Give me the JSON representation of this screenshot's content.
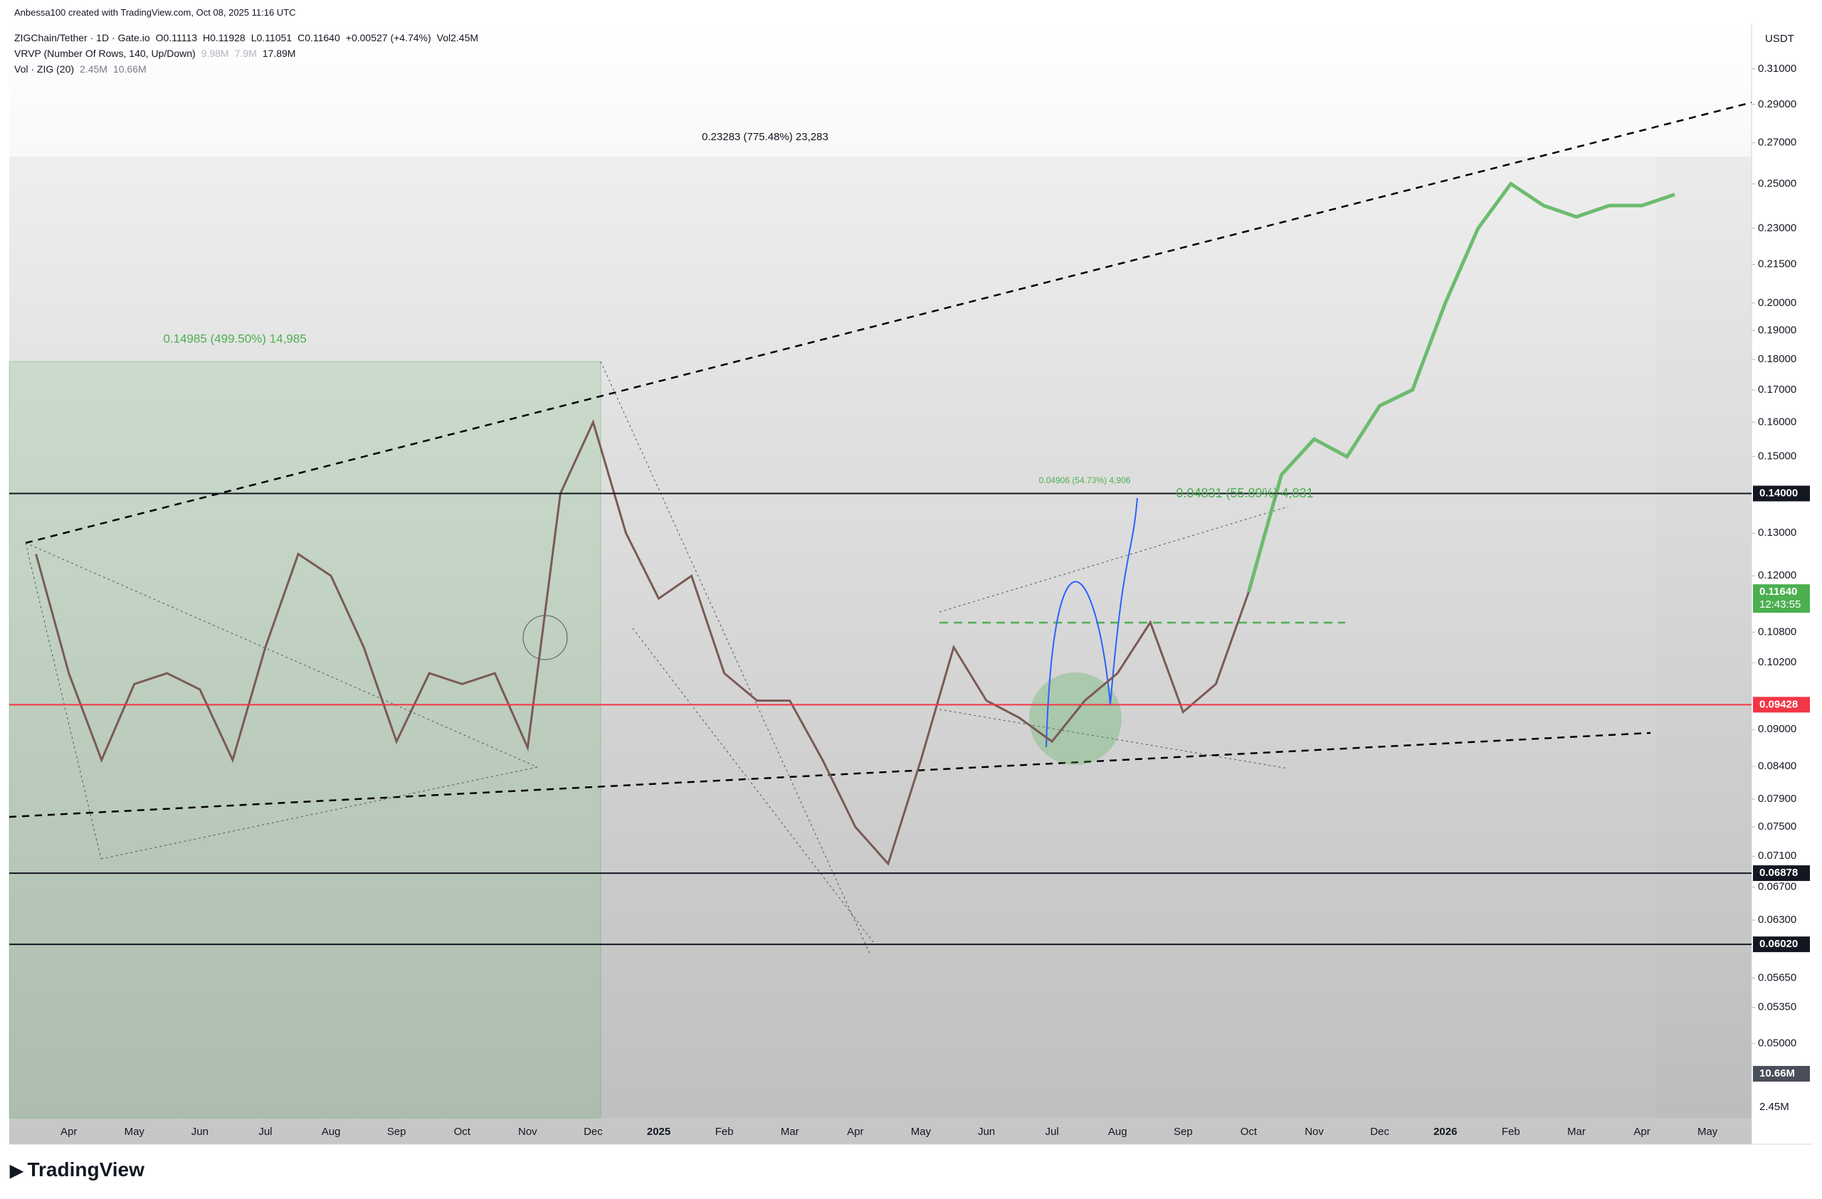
{
  "header": {
    "credit": "Anbessa100 created with TradingView.com, Oct 08, 2025 11:16 UTC",
    "legend_rows": [
      [
        "ZIGChain/Tether · 1D · Gate.io",
        "O0.11113",
        "H0.11928",
        "L0.11051",
        "C0.11640",
        "+0.00527 (+4.74%)",
        "Vol2.45M"
      ],
      [
        "VRVP (Number Of Rows, 140, Up/Down)",
        "9.98M",
        "7.9M",
        "17.89M"
      ],
      [
        "Vol · ZIG (20)",
        "2.45M",
        "10.66M"
      ]
    ]
  },
  "chart_data": {
    "type": "line",
    "log_scale": true,
    "color": "#7a5a55",
    "projection_color": "#6dbb6f",
    "currency": "USDT",
    "categories": [
      null,
      "Apr",
      null,
      "May",
      null,
      "Jun",
      null,
      "Jul",
      null,
      "Aug",
      null,
      "Sep",
      null,
      "Oct",
      null,
      "Nov",
      null,
      "Dec",
      null,
      "2025",
      null,
      "Feb",
      null,
      "Mar",
      null,
      "Apr",
      null,
      "May",
      null,
      "Jun",
      null,
      "Jul",
      null,
      "Aug",
      null,
      "Sep",
      null,
      "Oct",
      null,
      "Nov",
      null,
      "Dec",
      null,
      "2026",
      null,
      "Feb",
      null,
      "Mar",
      null,
      "Apr",
      null,
      "May"
    ],
    "values": [
      0.125,
      0.1,
      0.085,
      0.098,
      0.1,
      0.097,
      0.085,
      0.105,
      0.125,
      0.12,
      0.105,
      0.088,
      0.1,
      0.098,
      0.1,
      0.087,
      0.14,
      0.16,
      0.13,
      0.115,
      0.12,
      0.1,
      0.095,
      0.095,
      0.085,
      0.075,
      0.07,
      0.085,
      0.105,
      0.095,
      0.092,
      0.088,
      0.095,
      0.1,
      0.11,
      0.093,
      0.098,
      0.1164,
      null,
      null,
      null,
      null,
      null,
      null,
      null,
      null,
      null,
      null,
      null,
      null,
      null,
      null
    ],
    "projection": [
      null,
      null,
      null,
      null,
      null,
      null,
      null,
      null,
      null,
      null,
      null,
      null,
      null,
      null,
      null,
      null,
      null,
      null,
      null,
      null,
      null,
      null,
      null,
      null,
      null,
      null,
      null,
      null,
      null,
      null,
      null,
      null,
      null,
      null,
      null,
      null,
      null,
      0.1164,
      0.145,
      0.155,
      0.15,
      0.165,
      0.17,
      0.2,
      0.23,
      0.25,
      0.24,
      0.235,
      0.24,
      0.24,
      0.245,
      null
    ],
    "ylim": [
      0.0435,
      0.3375
    ],
    "yticks": [
      {
        "value": 0.31,
        "label": "0.31000"
      },
      {
        "value": 0.29,
        "label": "0.29000"
      },
      {
        "value": 0.27,
        "label": "0.27000"
      },
      {
        "value": 0.25,
        "label": "0.25000"
      },
      {
        "value": 0.23,
        "label": "0.23000"
      },
      {
        "value": 0.215,
        "label": "0.21500"
      },
      {
        "value": 0.2,
        "label": "0.20000"
      },
      {
        "value": 0.19,
        "label": "0.19000"
      },
      {
        "value": 0.18,
        "label": "0.18000"
      },
      {
        "value": 0.17,
        "label": "0.17000"
      },
      {
        "value": 0.16,
        "label": "0.16000"
      },
      {
        "value": 0.15,
        "label": "0.15000"
      },
      {
        "value": 0.13,
        "label": "0.13000"
      },
      {
        "value": 0.12,
        "label": "0.12000"
      },
      {
        "value": 0.108,
        "label": "0.10800"
      },
      {
        "value": 0.102,
        "label": "0.10200"
      },
      {
        "value": 0.09,
        "label": "0.09000"
      },
      {
        "value": 0.084,
        "label": "0.08400"
      },
      {
        "value": 0.079,
        "label": "0.07900"
      },
      {
        "value": 0.075,
        "label": "0.07500"
      },
      {
        "value": 0.071,
        "label": "0.07100"
      },
      {
        "value": 0.067,
        "label": "0.06700"
      },
      {
        "value": 0.063,
        "label": "0.06300"
      },
      {
        "value": 0.0565,
        "label": "0.05650"
      },
      {
        "value": 0.0535,
        "label": "0.05350"
      },
      {
        "value": 0.05,
        "label": "0.05000"
      }
    ],
    "price_levels": [
      {
        "value": 0.14,
        "label": "0.14000",
        "color": "#131722",
        "line": true
      },
      {
        "value": 0.1164,
        "label": "0.11640",
        "sub": "12:43:55",
        "color": "#4caf50",
        "line": false
      },
      {
        "value": 0.09428,
        "label": "0.09428",
        "color": "#f23645",
        "line": true
      },
      {
        "value": 0.06878,
        "label": "0.06878",
        "color": "#131722",
        "line": true
      },
      {
        "value": 0.0602,
        "label": "0.06020",
        "color": "#131722",
        "line": true
      }
    ],
    "volume_tags": [
      "10.66M",
      "2.45M"
    ],
    "annotations": [
      {
        "label": "0.23283 (775.48%) 23,283",
        "color": "#131722"
      },
      {
        "label": "0.14985 (499.50%) 14,985",
        "color": "#4caf50"
      },
      {
        "label": "0.04906 (54.73%) 4,906",
        "color": "#4caf50"
      },
      {
        "label": "0.04831 (55.89%) 4,831",
        "color": "#4caf50"
      }
    ]
  },
  "footer": {
    "brand": "TradingView"
  }
}
